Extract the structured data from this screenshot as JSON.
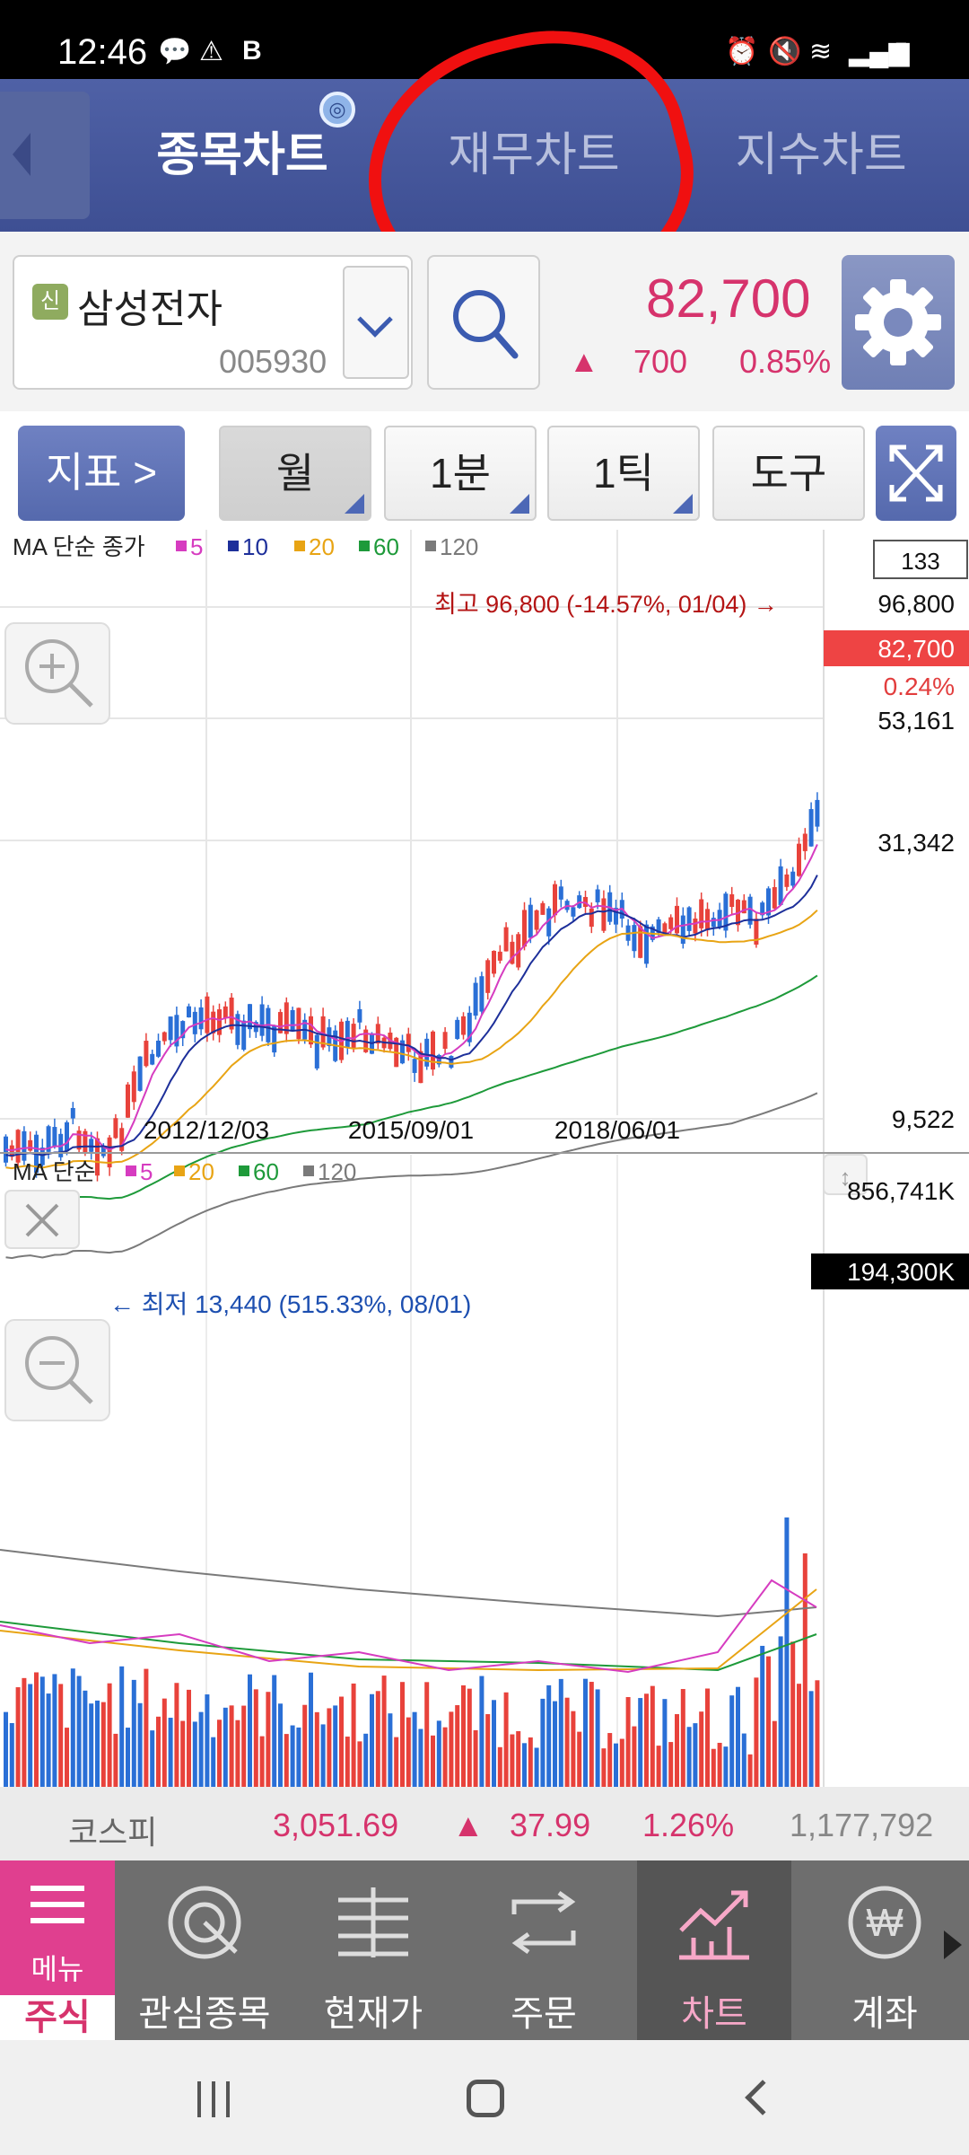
{
  "status": {
    "time": "12:46",
    "icons": [
      "talk-icon",
      "warning-icon",
      "b-icon",
      "alarm-icon",
      "mute-icon",
      "wifi-icon",
      "signal-icon",
      "battery-icon"
    ]
  },
  "tabs": [
    {
      "label": "종목차트",
      "active": true
    },
    {
      "label": "재무차트",
      "active": false
    },
    {
      "label": "지수차트",
      "active": false
    }
  ],
  "stock": {
    "badge": "신",
    "name": "삼성전자",
    "code": "005930",
    "price": "82,700",
    "change": "700",
    "change_pct": "0.85%"
  },
  "toolbar": {
    "indicator": "지표 >",
    "period_month": "월",
    "period_1min": "1분",
    "period_1tick": "1틱",
    "tools": "도구"
  },
  "main_chart": {
    "legend": {
      "ma": "MA 단순 종가",
      "p5": "5",
      "p10": "10",
      "p20": "20",
      "p60": "60",
      "p120": "120"
    },
    "count": "133",
    "high_annotation": "최고 96,800 (-14.57%, 01/04) →",
    "low_annotation": "← 최저 13,440 (515.33%, 08/01)",
    "current_label": "82,700",
    "current_pct": "0.24%",
    "y_ticks": [
      "96,800",
      "53,161",
      "31,342",
      "9,522"
    ],
    "x_ticks": [
      "2012/12/03",
      "2015/09/01",
      "2018/06/01"
    ]
  },
  "volume_chart": {
    "legend": {
      "ma": "MA 단순",
      "p5": "5",
      "p20": "20",
      "p60": "60",
      "p120": "120"
    },
    "max_label": "856,741K",
    "current_label": "194,300K"
  },
  "index_bar": {
    "name": "코스피",
    "value": "3,051.69",
    "change": "37.99",
    "change_pct": "1.26%",
    "volume": "1,177,792"
  },
  "bottom_nav": [
    {
      "label": "주식",
      "sub": "메뉴"
    },
    {
      "label": "관심종목"
    },
    {
      "label": "현재가"
    },
    {
      "label": "주문"
    },
    {
      "label": "차트",
      "active": true
    },
    {
      "label": "계좌"
    }
  ],
  "colors": {
    "up": "#e8423b",
    "down": "#2a6fd6",
    "ma5": "#d63cc0",
    "ma10": "#1d2f9a",
    "ma20": "#e8a414",
    "ma60": "#1e9a3a",
    "ma120": "#7a7a7a",
    "brand": "#4f61a6"
  }
}
